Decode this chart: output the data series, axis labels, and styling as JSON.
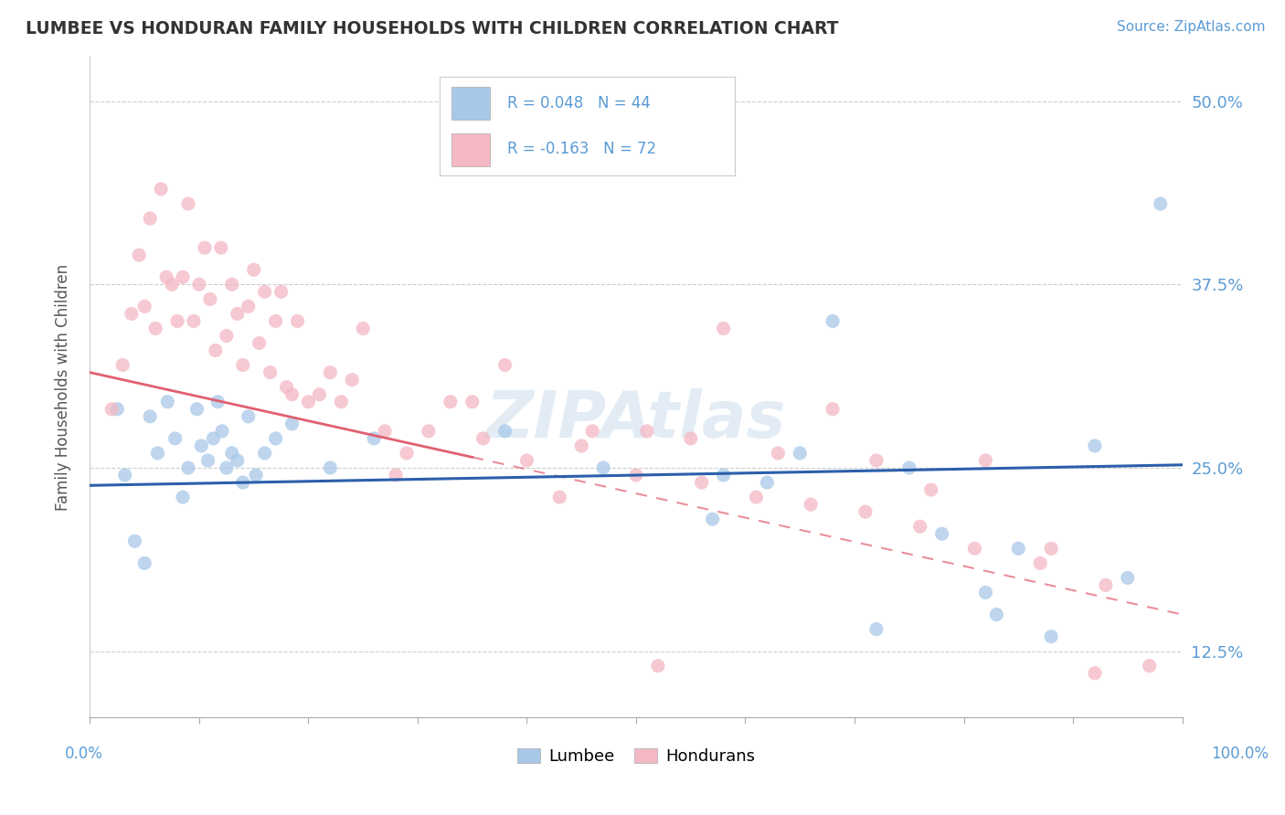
{
  "title": "LUMBEE VS HONDURAN FAMILY HOUSEHOLDS WITH CHILDREN CORRELATION CHART",
  "source": "Source: ZipAtlas.com",
  "ylabel": "Family Households with Children",
  "xlim": [
    0.0,
    100.0
  ],
  "ylim": [
    8.0,
    53.0
  ],
  "yticks": [
    12.5,
    25.0,
    37.5,
    50.0
  ],
  "ytick_labels": [
    "12.5%",
    "25.0%",
    "37.5%",
    "50.0%"
  ],
  "background_color": "#ffffff",
  "grid_color": "#cccccc",
  "lumbee_color": "#a8c8e8",
  "honduran_color": "#f4b8c4",
  "lumbee_line_color": "#2b5faa",
  "honduran_line_color": "#e06070",
  "legend_r_lumbee": "R = 0.048",
  "legend_n_lumbee": "N = 44",
  "legend_r_honduran": "R = -0.163",
  "legend_n_honduran": "N = 72",
  "lumbee_line_start_y": 23.8,
  "lumbee_line_end_y": 25.2,
  "honduran_line_start_y": 31.5,
  "honduran_line_end_y": 15.0,
  "honduran_solid_end_x": 35.0,
  "lumbee_x": [
    2.5,
    3.2,
    4.1,
    5.0,
    5.5,
    6.2,
    7.1,
    7.8,
    8.5,
    9.0,
    9.8,
    10.2,
    10.8,
    11.3,
    11.7,
    12.1,
    12.5,
    13.0,
    13.5,
    14.0,
    14.5,
    15.2,
    16.0,
    17.0,
    18.5,
    22.0,
    26.0,
    38.0,
    47.0,
    58.0,
    62.0,
    65.0,
    68.0,
    75.0,
    78.0,
    82.0,
    85.0,
    88.0,
    92.0,
    95.0,
    98.0,
    57.0,
    72.0,
    83.0
  ],
  "lumbee_y": [
    29.0,
    24.5,
    20.0,
    18.5,
    28.5,
    26.0,
    29.5,
    27.0,
    23.0,
    25.0,
    29.0,
    26.5,
    25.5,
    27.0,
    29.5,
    27.5,
    25.0,
    26.0,
    25.5,
    24.0,
    28.5,
    24.5,
    26.0,
    27.0,
    28.0,
    25.0,
    27.0,
    27.5,
    25.0,
    24.5,
    24.0,
    26.0,
    35.0,
    25.0,
    20.5,
    16.5,
    19.5,
    13.5,
    26.5,
    17.5,
    43.0,
    21.5,
    14.0,
    15.0
  ],
  "honduran_x": [
    2.0,
    3.0,
    3.8,
    4.5,
    5.0,
    5.5,
    6.0,
    6.5,
    7.0,
    7.5,
    8.0,
    8.5,
    9.0,
    9.5,
    10.0,
    10.5,
    11.0,
    11.5,
    12.0,
    12.5,
    13.0,
    13.5,
    14.0,
    14.5,
    15.0,
    15.5,
    16.0,
    16.5,
    17.0,
    17.5,
    18.0,
    18.5,
    19.0,
    20.0,
    21.0,
    22.0,
    23.0,
    24.0,
    25.0,
    27.0,
    29.0,
    31.0,
    33.0,
    36.0,
    40.0,
    45.0,
    50.0,
    55.0,
    58.0,
    63.0,
    68.0,
    72.0,
    77.0,
    82.0,
    88.0,
    92.0,
    46.0,
    51.0,
    56.0,
    61.0,
    66.0,
    71.0,
    76.0,
    81.0,
    87.0,
    93.0,
    97.0,
    35.0,
    43.0,
    52.0,
    28.0,
    38.0
  ],
  "honduran_y": [
    29.0,
    32.0,
    35.5,
    39.5,
    36.0,
    42.0,
    34.5,
    44.0,
    38.0,
    37.5,
    35.0,
    38.0,
    43.0,
    35.0,
    37.5,
    40.0,
    36.5,
    33.0,
    40.0,
    34.0,
    37.5,
    35.5,
    32.0,
    36.0,
    38.5,
    33.5,
    37.0,
    31.5,
    35.0,
    37.0,
    30.5,
    30.0,
    35.0,
    29.5,
    30.0,
    31.5,
    29.5,
    31.0,
    34.5,
    27.5,
    26.0,
    27.5,
    29.5,
    27.0,
    25.5,
    26.5,
    24.5,
    27.0,
    34.5,
    26.0,
    29.0,
    25.5,
    23.5,
    25.5,
    19.5,
    11.0,
    27.5,
    27.5,
    24.0,
    23.0,
    22.5,
    22.0,
    21.0,
    19.5,
    18.5,
    17.0,
    11.5,
    29.5,
    23.0,
    11.5,
    24.5,
    32.0
  ]
}
